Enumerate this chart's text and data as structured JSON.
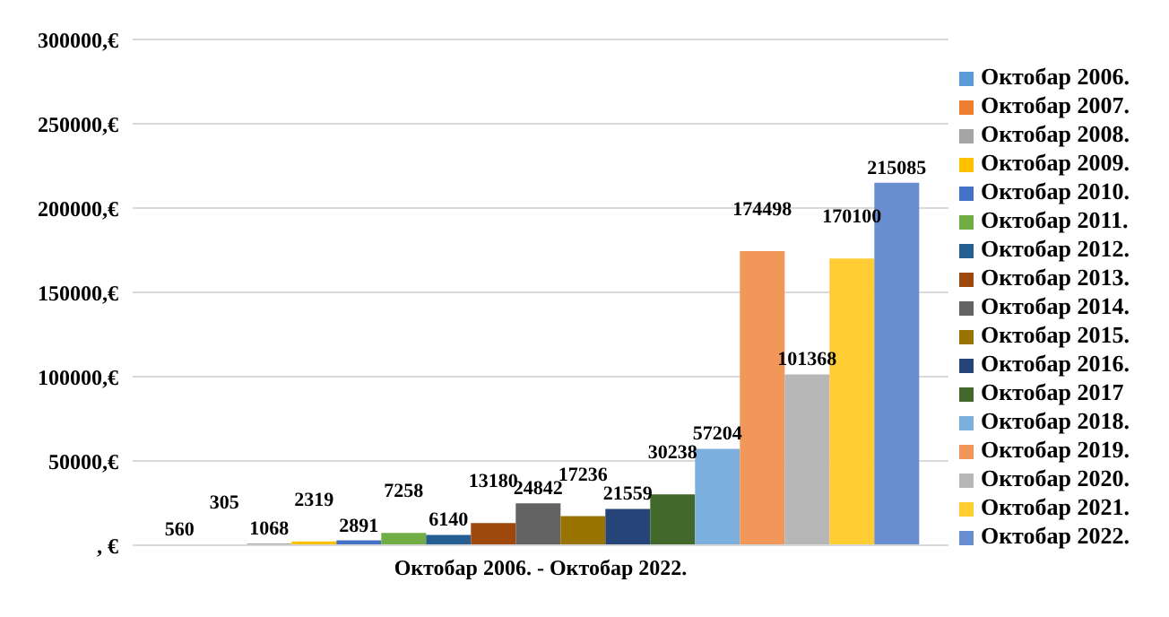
{
  "chart_data": {
    "type": "bar",
    "categories": [
      "Октобар 2006. - Октобар 2022."
    ],
    "series": [
      {
        "name": "Октобар 2006.",
        "color": "#5b9bd5",
        "values": [
          560
        ]
      },
      {
        "name": "Октобар 2007.",
        "color": "#ed7d31",
        "values": [
          305
        ]
      },
      {
        "name": "Октобар 2008.",
        "color": "#a5a5a5",
        "values": [
          1068
        ]
      },
      {
        "name": "Октобар 2009.",
        "color": "#ffc000",
        "values": [
          2319
        ]
      },
      {
        "name": "Октобар 2010.",
        "color": "#4472c4",
        "values": [
          2891
        ]
      },
      {
        "name": "Октобар 2011.",
        "color": "#70ad47",
        "values": [
          7258
        ]
      },
      {
        "name": "Октобар 2012.",
        "color": "#255e91",
        "values": [
          6140
        ]
      },
      {
        "name": "Октобар 2013.",
        "color": "#9e480e",
        "values": [
          13180
        ]
      },
      {
        "name": "Октобар 2014.",
        "color": "#636363",
        "values": [
          24842
        ]
      },
      {
        "name": "Октобар 2015.",
        "color": "#997300",
        "values": [
          17236
        ]
      },
      {
        "name": "Октобар 2016.",
        "color": "#264478",
        "values": [
          21559
        ]
      },
      {
        "name": "Октобар 2017",
        "color": "#43682b",
        "values": [
          30238
        ]
      },
      {
        "name": "Октобар 2018.",
        "color": "#7cafdd",
        "values": [
          57204
        ]
      },
      {
        "name": "Октобар 2019.",
        "color": "#f1975a",
        "values": [
          174498
        ]
      },
      {
        "name": "Октобар 2020.",
        "color": "#b7b7b7",
        "values": [
          101368
        ]
      },
      {
        "name": "Октобар 2021.",
        "color": "#ffcd33",
        "values": [
          170100
        ]
      },
      {
        "name": "Октобар 2022.",
        "color": "#698ed0",
        "values": [
          215085
        ]
      }
    ],
    "ylim": [
      0,
      300000
    ],
    "yticks": [
      {
        "value": 0,
        "label": ", €"
      },
      {
        "value": 50000,
        "label": "50000,€"
      },
      {
        "value": 100000,
        "label": "100000,€"
      },
      {
        "value": 150000,
        "label": "150000,€"
      },
      {
        "value": 200000,
        "label": "200000,€"
      },
      {
        "value": 250000,
        "label": "250000,€"
      },
      {
        "value": 300000,
        "label": "300000,€"
      }
    ],
    "grid": "y",
    "legend": "right",
    "data_labels": true
  }
}
